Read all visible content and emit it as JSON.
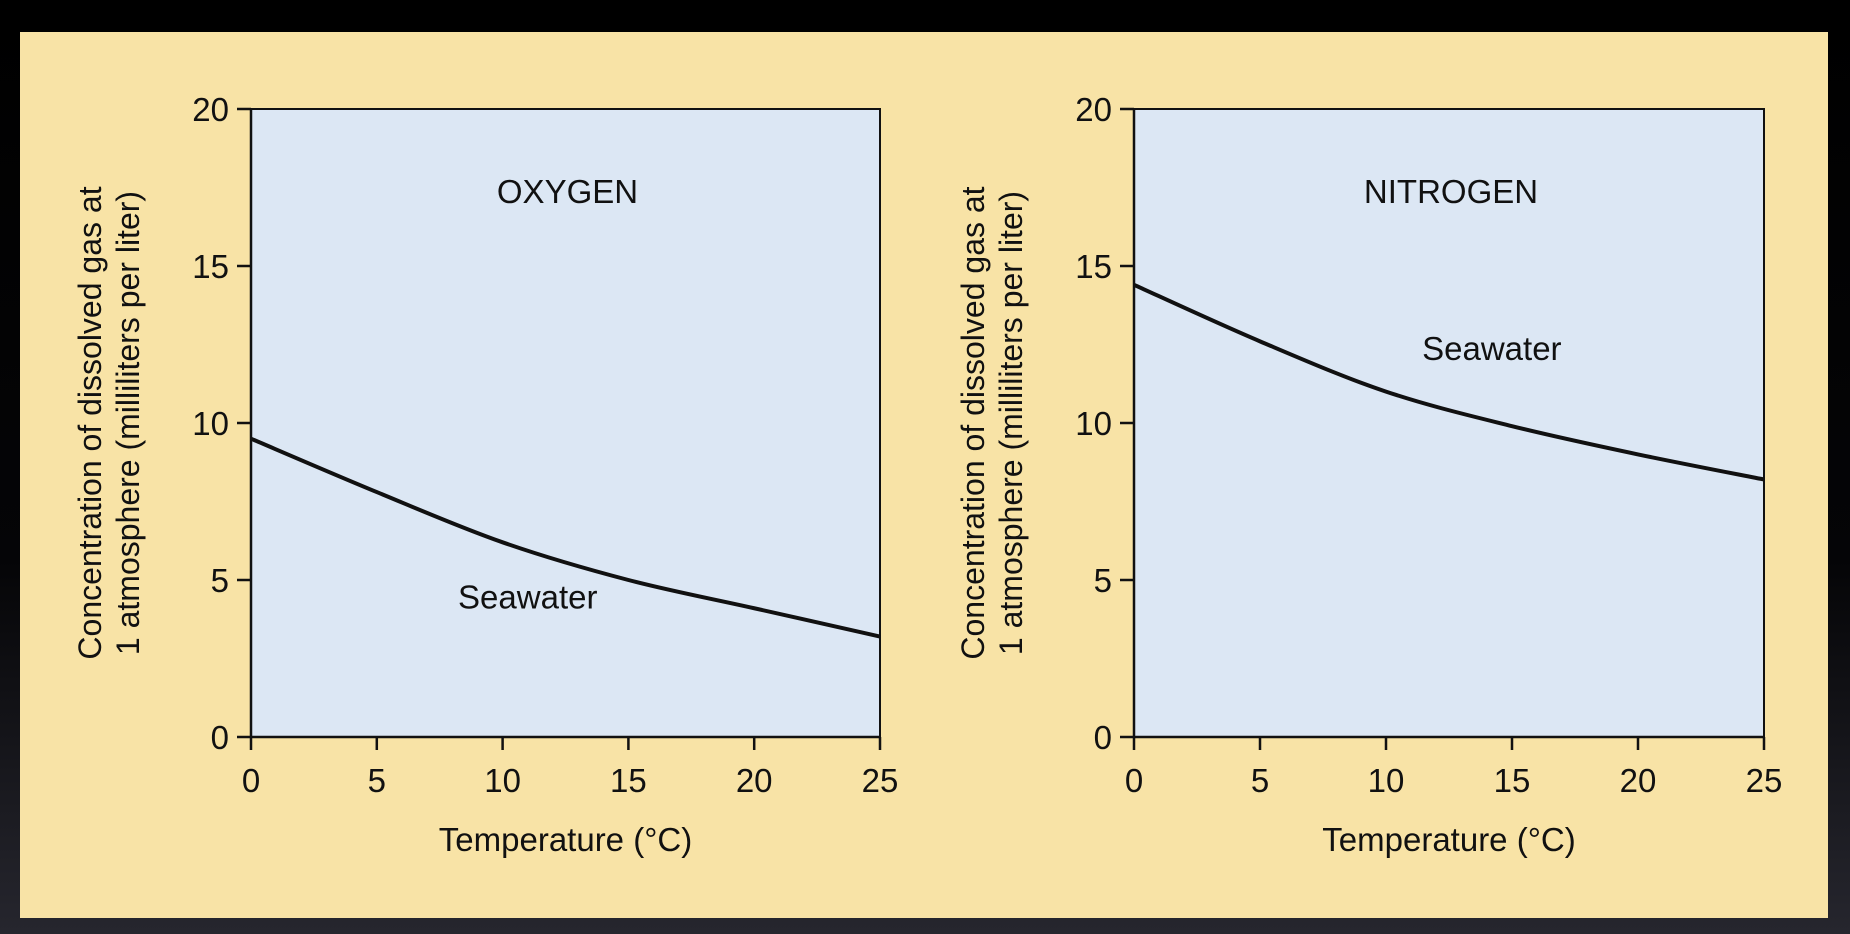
{
  "chart_data": [
    {
      "type": "line",
      "title": "OXYGEN",
      "xlabel": "Temperature (°C)",
      "ylabel_line1": "Concentration of dissolved gas at",
      "ylabel_line2": "1 atmosphere (milliliters per liter)",
      "xlim": [
        0,
        25
      ],
      "ylim": [
        0,
        20
      ],
      "xticks": [
        "0",
        "5",
        "10",
        "15",
        "20",
        "25"
      ],
      "yticks": [
        "0",
        "5",
        "10",
        "15",
        "20"
      ],
      "grid": false,
      "series": [
        {
          "name": "Seawater",
          "x": [
            0,
            5,
            10,
            15,
            20,
            25
          ],
          "values": [
            9.5,
            7.8,
            6.2,
            5.0,
            4.1,
            3.2
          ]
        }
      ]
    },
    {
      "type": "line",
      "title": "NITROGEN",
      "xlabel": "Temperature (°C)",
      "ylabel_line1": "Concentration of dissolved gas at",
      "ylabel_line2": "1 atmosphere (milliliters per liter)",
      "xlim": [
        0,
        25
      ],
      "ylim": [
        0,
        20
      ],
      "xticks": [
        "0",
        "5",
        "10",
        "15",
        "20",
        "25"
      ],
      "yticks": [
        "0",
        "5",
        "10",
        "15",
        "20"
      ],
      "grid": false,
      "series": [
        {
          "name": "Seawater",
          "x": [
            0,
            5,
            10,
            15,
            20,
            25
          ],
          "values": [
            14.4,
            12.6,
            11.0,
            9.9,
            9.0,
            8.2
          ]
        }
      ]
    }
  ],
  "colors": {
    "panel_background": "#f8e3a6",
    "plot_background": "#dce7f4",
    "curve": "#111111"
  }
}
